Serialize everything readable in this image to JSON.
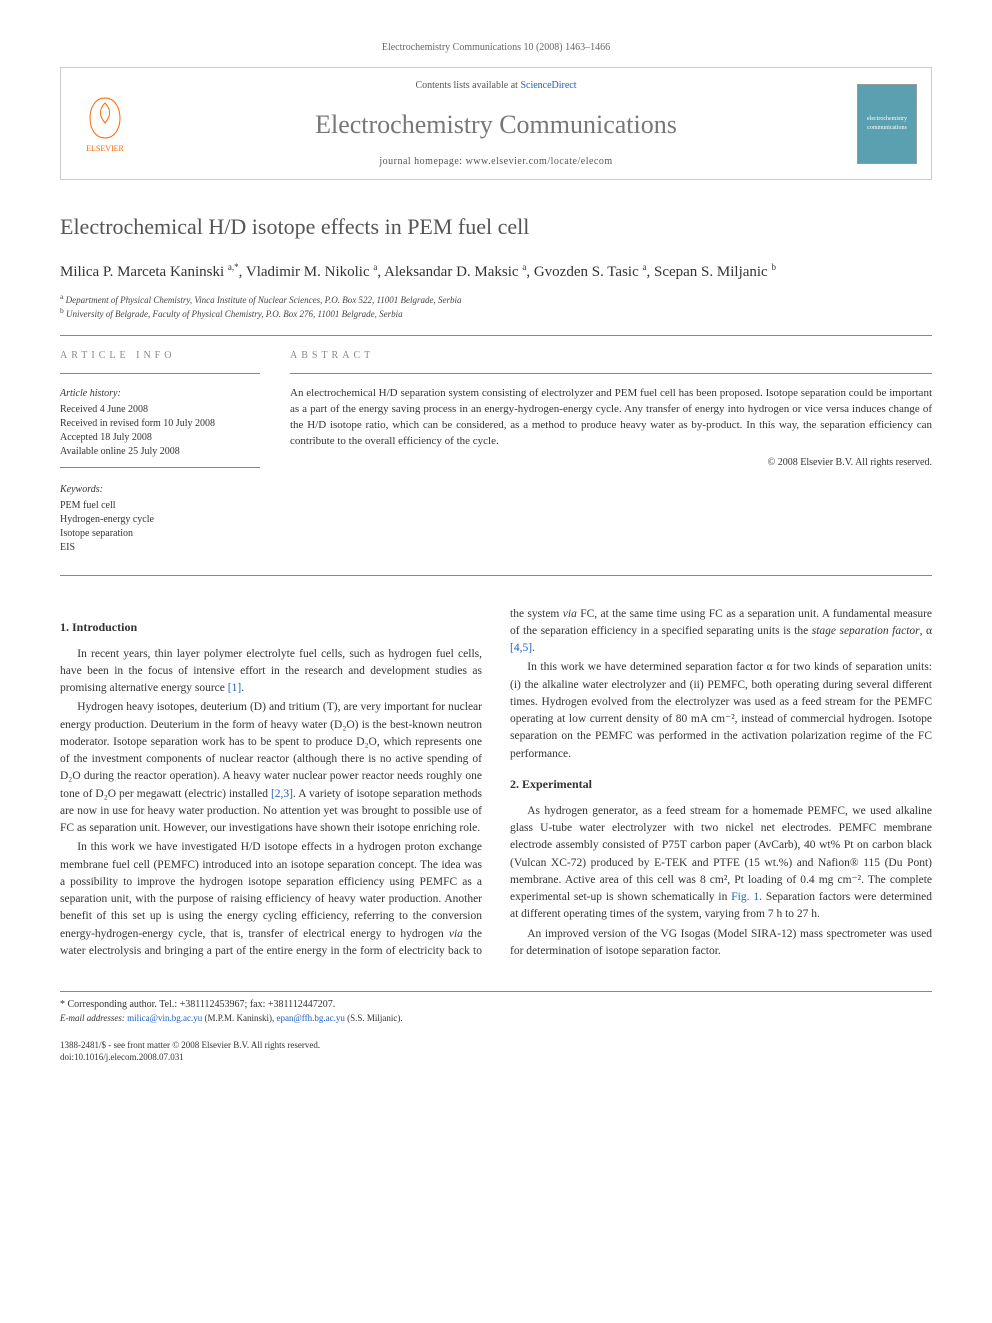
{
  "journal_header_line": "Electrochemistry Communications 10 (2008) 1463–1466",
  "header": {
    "contents_prefix": "Contents lists available at ",
    "contents_link": "ScienceDirect",
    "journal_name": "Electrochemistry Communications",
    "homepage_prefix": "journal homepage: ",
    "homepage_url": "www.elsevier.com/locate/elecom",
    "publisher_label": "ELSEVIER",
    "cover_text": "electrochemistry communications"
  },
  "title": "Electrochemical H/D isotope effects in PEM fuel cell",
  "authors_html": "Milica P. Marceta Kaninski <sup>a,*</sup>, Vladimir M. Nikolic <sup>a</sup>, Aleksandar D. Maksic <sup>a</sup>, Gvozden S. Tasic <sup>a</sup>, Scepan S. Miljanic <sup>b</sup>",
  "affiliations": {
    "a": "Department of Physical Chemistry, Vinca Institute of Nuclear Sciences, P.O. Box 522, 11001 Belgrade, Serbia",
    "b": "University of Belgrade, Faculty of Physical Chemistry, P.O. Box 276, 11001 Belgrade, Serbia"
  },
  "info": {
    "section_label": "ARTICLE INFO",
    "history_heading": "Article history:",
    "history_lines": [
      "Received 4 June 2008",
      "Received in revised form 10 July 2008",
      "Accepted 18 July 2008",
      "Available online 25 July 2008"
    ],
    "keywords_heading": "Keywords:",
    "keywords": [
      "PEM fuel cell",
      "Hydrogen-energy cycle",
      "Isotope separation",
      "EIS"
    ]
  },
  "abstract": {
    "section_label": "ABSTRACT",
    "text": "An electrochemical H/D separation system consisting of electrolyzer and PEM fuel cell has been proposed. Isotope separation could be important as a part of the energy saving process in an energy-hydrogen-energy cycle. Any transfer of energy into hydrogen or vice versa induces change of the H/D isotope ratio, which can be considered, as a method to produce heavy water as by-product. In this way, the separation efficiency can contribute to the overall efficiency of the cycle.",
    "copyright": "© 2008 Elsevier B.V. All rights reserved."
  },
  "body": {
    "intro_heading": "1. Introduction",
    "intro_p1": "In recent years, thin layer polymer electrolyte fuel cells, such as hydrogen fuel cells, have been in the focus of intensive effort in the research and development studies as promising alternative energy source ",
    "intro_p1_ref": "[1]",
    "intro_p1_end": ".",
    "intro_p2a": "Hydrogen heavy isotopes, deuterium (D) and tritium (T), are very important for nuclear energy production. Deuterium in the form of heavy water (D₂O) is the best-known neutron moderator. Isotope separation work has to be spent to produce D₂O, which represents one of the investment components of nuclear reactor (although there is no active spending of D₂O during the reactor operation). A heavy water nuclear power reactor needs roughly one tone of D₂O per megawatt (electric) installed ",
    "intro_p2_ref": "[2,3]",
    "intro_p2b": ". A variety of isotope separation methods are now in use for heavy water production. No attention yet was brought to possible use of FC as separation unit. However, our investigations have shown their isotope enriching role.",
    "intro_p3": "In this work we have investigated H/D isotope effects in a hydrogen proton exchange membrane fuel cell (PEMFC) introduced into an isotope separation concept. The idea was a possibility to improve the hydrogen isotope separation efficiency using PEMFC as a separation unit, with the purpose of raising efficiency of heavy water production. Another benefit of this set up is using the energy cycling efficiency, referring to the conversion energy-hydrogen-energy cycle, that is, transfer of electrical energy to hydrogen ",
    "intro_p3_via1": "via",
    "intro_p3b": " the water electrolysis and bringing a part of the entire energy in the form of electricity back to the system ",
    "intro_p3_via2": "via",
    "intro_p3c": " FC, at the same time using FC as a separation unit. A fundamental measure of the separation efficiency in a specified separating units is the ",
    "intro_p3_stage": "stage separation factor",
    "intro_p3d": ", α ",
    "intro_p3_ref": "[4,5]",
    "intro_p3e": ".",
    "intro_p4": "In this work we have determined separation factor α for two kinds of separation units: (i) the alkaline water electrolyzer and (ii) PEMFC, both operating during several different times. Hydrogen evolved from the electrolyzer was used as a feed stream for the PEMFC operating at low current density of 80 mA cm⁻², instead of commercial hydrogen. Isotope separation on the PEMFC was performed in the activation polarization regime of the FC performance.",
    "exp_heading": "2. Experimental",
    "exp_p1a": "As hydrogen generator, as a feed stream for a homemade PEMFC, we used alkaline glass U-tube water electrolyzer with two nickel net electrodes. PEMFC membrane electrode assembly consisted of P75T carbon paper (AvCarb), 40 wt% Pt on carbon black (Vulcan XC-72) produced by E-TEK and PTFE (15 wt.%) and Nafion® 115 (Du Pont) membrane. Active area of this cell was 8 cm², Pt loading of 0.4 mg cm⁻². The complete experimental set-up is shown schematically in ",
    "exp_p1_fig": "Fig. 1",
    "exp_p1b": ". Separation factors were determined at different operating times of the system, varying from 7 h to 27 h.",
    "exp_p2": "An improved version of the VG Isogas (Model SIRA-12) mass spectrometer was used for determination of isotope separation factor."
  },
  "footer": {
    "corresp_label": "* Corresponding author. Tel.: +381112453967; fax: +381112447207.",
    "email_label": "E-mail addresses:",
    "email1": "milica@vin.bg.ac.yu",
    "email1_who": " (M.P.M. Kaninski), ",
    "email2": "epan@ffh.bg.ac.yu",
    "email2_who": " (S.S. Miljanic).",
    "issn_line": "1388-2481/$ - see front matter © 2008 Elsevier B.V. All rights reserved.",
    "doi_line": "doi:10.1016/j.elecom.2008.07.031"
  },
  "colors": {
    "link": "#2060c0",
    "heading_gray": "#555",
    "muted": "#888",
    "elsevier_orange": "#ff6600",
    "cover_bg": "#5aa0b0"
  }
}
